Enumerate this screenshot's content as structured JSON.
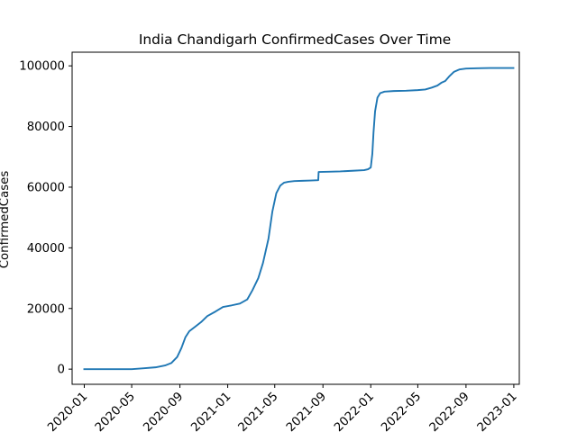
{
  "chart_data": {
    "type": "line",
    "title": "India Chandigarh ConfirmedCases Over Time",
    "xlabel": "",
    "ylabel": "ConfirmedCases",
    "x_range": [
      "2019-12-01",
      "2023-01-15"
    ],
    "ylim": [
      -5000,
      104500
    ],
    "x_ticks": [
      "2020-01",
      "2020-05",
      "2020-09",
      "2021-01",
      "2021-05",
      "2021-09",
      "2022-01",
      "2022-05",
      "2022-09",
      "2023-01"
    ],
    "y_ticks": [
      0,
      20000,
      40000,
      60000,
      80000,
      100000
    ],
    "y_tick_labels": [
      "0",
      "20000",
      "40000",
      "60000",
      "80000",
      "100000"
    ],
    "grid": false,
    "legend": "none",
    "line_color": "#1f77b4",
    "series": [
      {
        "x": [
          "2020-01-01",
          "2020-03-01",
          "2020-05-01",
          "2020-06-01",
          "2020-07-01",
          "2020-07-25",
          "2020-08-10",
          "2020-08-25",
          "2020-09-05",
          "2020-09-15",
          "2020-09-25",
          "2020-10-10",
          "2020-10-25",
          "2020-11-10",
          "2020-12-01",
          "2020-12-20",
          "2021-01-10",
          "2021-02-01",
          "2021-02-20",
          "2021-03-05",
          "2021-03-20",
          "2021-04-01",
          "2021-04-15",
          "2021-04-25",
          "2021-05-05",
          "2021-05-15",
          "2021-05-25",
          "2021-06-05",
          "2021-06-20",
          "2021-07-10",
          "2021-08-01",
          "2021-08-20",
          "2021-08-21",
          "2021-09-15",
          "2021-10-15",
          "2021-11-15",
          "2021-12-15",
          "2021-12-25",
          "2022-01-01",
          "2022-01-05",
          "2022-01-08",
          "2022-01-12",
          "2022-01-18",
          "2022-01-25",
          "2022-02-05",
          "2022-03-01",
          "2022-04-01",
          "2022-05-01",
          "2022-05-20",
          "2022-06-05",
          "2022-06-20",
          "2022-07-01",
          "2022-07-10",
          "2022-07-20",
          "2022-08-01",
          "2022-08-15",
          "2022-09-01",
          "2022-10-01",
          "2022-11-01",
          "2022-12-01",
          "2022-12-31"
        ],
        "y": [
          0,
          0,
          0,
          300,
          600,
          1200,
          2000,
          4000,
          7000,
          10500,
          12500,
          14000,
          15500,
          17500,
          19000,
          20500,
          21000,
          21600,
          23000,
          26000,
          30000,
          35000,
          43000,
          52000,
          58000,
          60500,
          61500,
          61800,
          62000,
          62100,
          62200,
          62300,
          65000,
          65100,
          65200,
          65400,
          65600,
          65900,
          66500,
          71000,
          78000,
          85000,
          89500,
          91000,
          91500,
          91700,
          91800,
          92000,
          92200,
          92800,
          93500,
          94500,
          95000,
          96500,
          98000,
          98800,
          99100,
          99200,
          99300,
          99300,
          99300
        ]
      }
    ]
  }
}
